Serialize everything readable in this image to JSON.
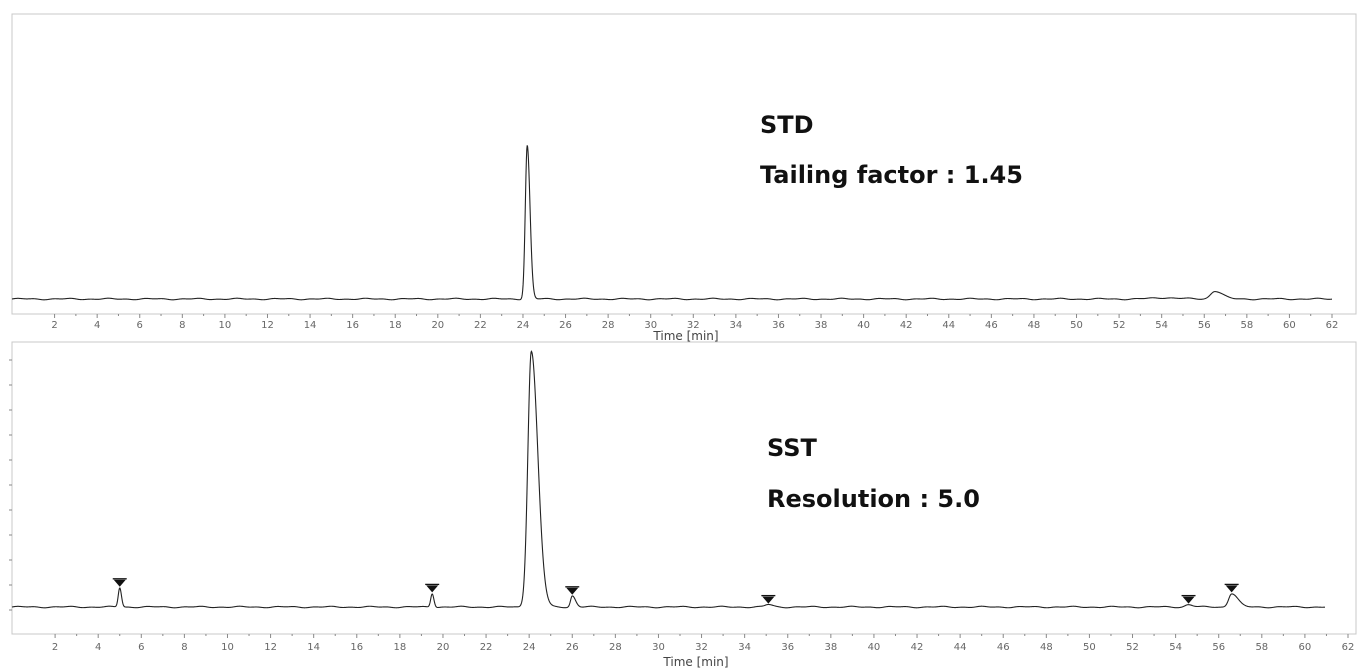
{
  "chart_data": [
    {
      "type": "line",
      "xlabel": "Time [min]",
      "xlim": [
        0,
        62
      ],
      "ylim": [
        0,
        1.0
      ],
      "xticks": [
        2,
        4,
        6,
        8,
        10,
        12,
        14,
        16,
        18,
        20,
        22,
        24,
        26,
        28,
        30,
        32,
        34,
        36,
        38,
        40,
        42,
        44,
        46,
        48,
        50,
        52,
        54,
        56,
        58,
        60,
        62
      ],
      "annotations": [
        "STD",
        "Tailing factor : 1.45"
      ],
      "series": [
        {
          "peaks": [
            {
              "rt": 24.2,
              "height": 0.96,
              "width": 0.09,
              "tail": 0.13
            },
            {
              "rt": 56.5,
              "height": 0.05,
              "width": 0.2,
              "tail": 0.35
            },
            {
              "rt": 54.2,
              "height": 0.008,
              "width": 0.6,
              "tail": 0.6
            }
          ]
        }
      ],
      "grid": false
    },
    {
      "type": "line",
      "xlabel": "Time [min]",
      "xlim": [
        0,
        62
      ],
      "ylim": [
        0,
        1.0
      ],
      "xticks": [
        2,
        4,
        6,
        8,
        10,
        12,
        14,
        16,
        18,
        20,
        22,
        24,
        26,
        28,
        30,
        32,
        34,
        36,
        38,
        40,
        42,
        44,
        46,
        48,
        50,
        52,
        54,
        56,
        58,
        60,
        62
      ],
      "annotations": [
        "SST",
        "Resolution : 5.0"
      ],
      "series": [
        {
          "peaks": [
            {
              "rt": 5.0,
              "height": 0.12,
              "width": 0.07,
              "tail": 0.08
            },
            {
              "rt": 19.5,
              "height": 0.085,
              "width": 0.07,
              "tail": 0.08
            },
            {
              "rt": 24.1,
              "height": 1.6,
              "width": 0.16,
              "tail": 0.3
            },
            {
              "rt": 26.0,
              "height": 0.07,
              "width": 0.08,
              "tail": 0.15
            },
            {
              "rt": 35.1,
              "height": 0.015,
              "width": 0.15,
              "tail": 0.2
            },
            {
              "rt": 54.6,
              "height": 0.015,
              "width": 0.15,
              "tail": 0.2
            },
            {
              "rt": 56.6,
              "height": 0.085,
              "width": 0.14,
              "tail": 0.28
            }
          ],
          "markers": [
            5.0,
            19.5,
            26.0,
            35.1,
            54.6,
            56.6
          ]
        }
      ],
      "grid": false
    }
  ]
}
